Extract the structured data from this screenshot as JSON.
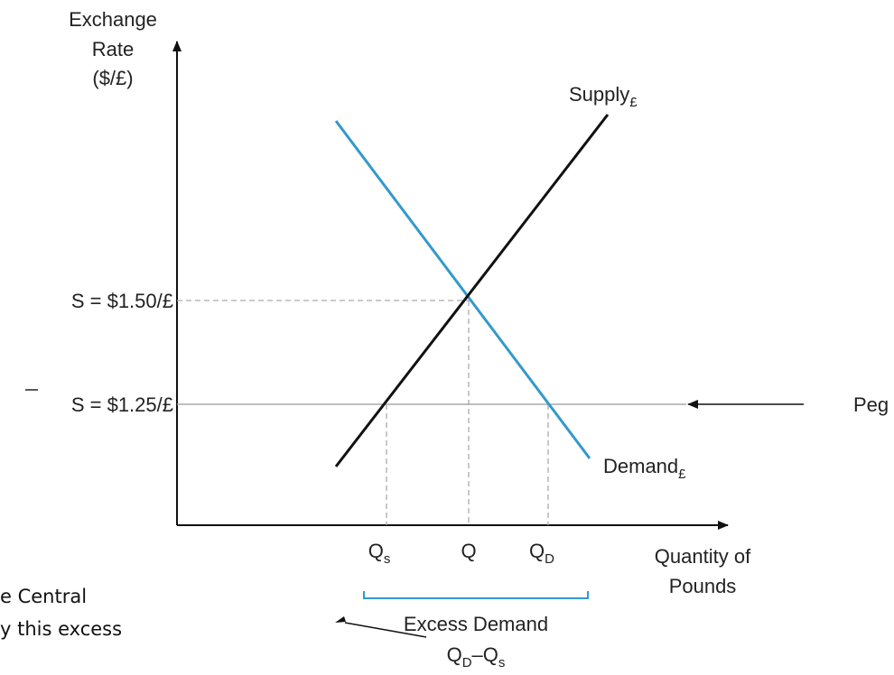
{
  "axes": {
    "y_label": [
      "Exchange",
      "Rate",
      "($/£)"
    ],
    "x_label": [
      "Quantity of",
      "Pounds"
    ]
  },
  "curves": [
    {
      "label": "Supply",
      "subscript": "£"
    },
    {
      "label": "Demand",
      "subscript": "£"
    }
  ],
  "rates": [
    {
      "symbol": "S",
      "text": " = $1.50/£"
    },
    {
      "symbol": "S",
      "text": " = $1.25/£"
    }
  ],
  "quantities": [
    {
      "main": "Q",
      "sub": "s"
    },
    {
      "main": "Q"
    },
    {
      "main": "Q",
      "sub": "D"
    }
  ],
  "peg": "Peg",
  "excess": {
    "title": "Excess Demand",
    "formula": [
      "Q",
      "D",
      "–Q",
      "s"
    ]
  },
  "note": [
    "e Central",
    "y this excess"
  ]
}
